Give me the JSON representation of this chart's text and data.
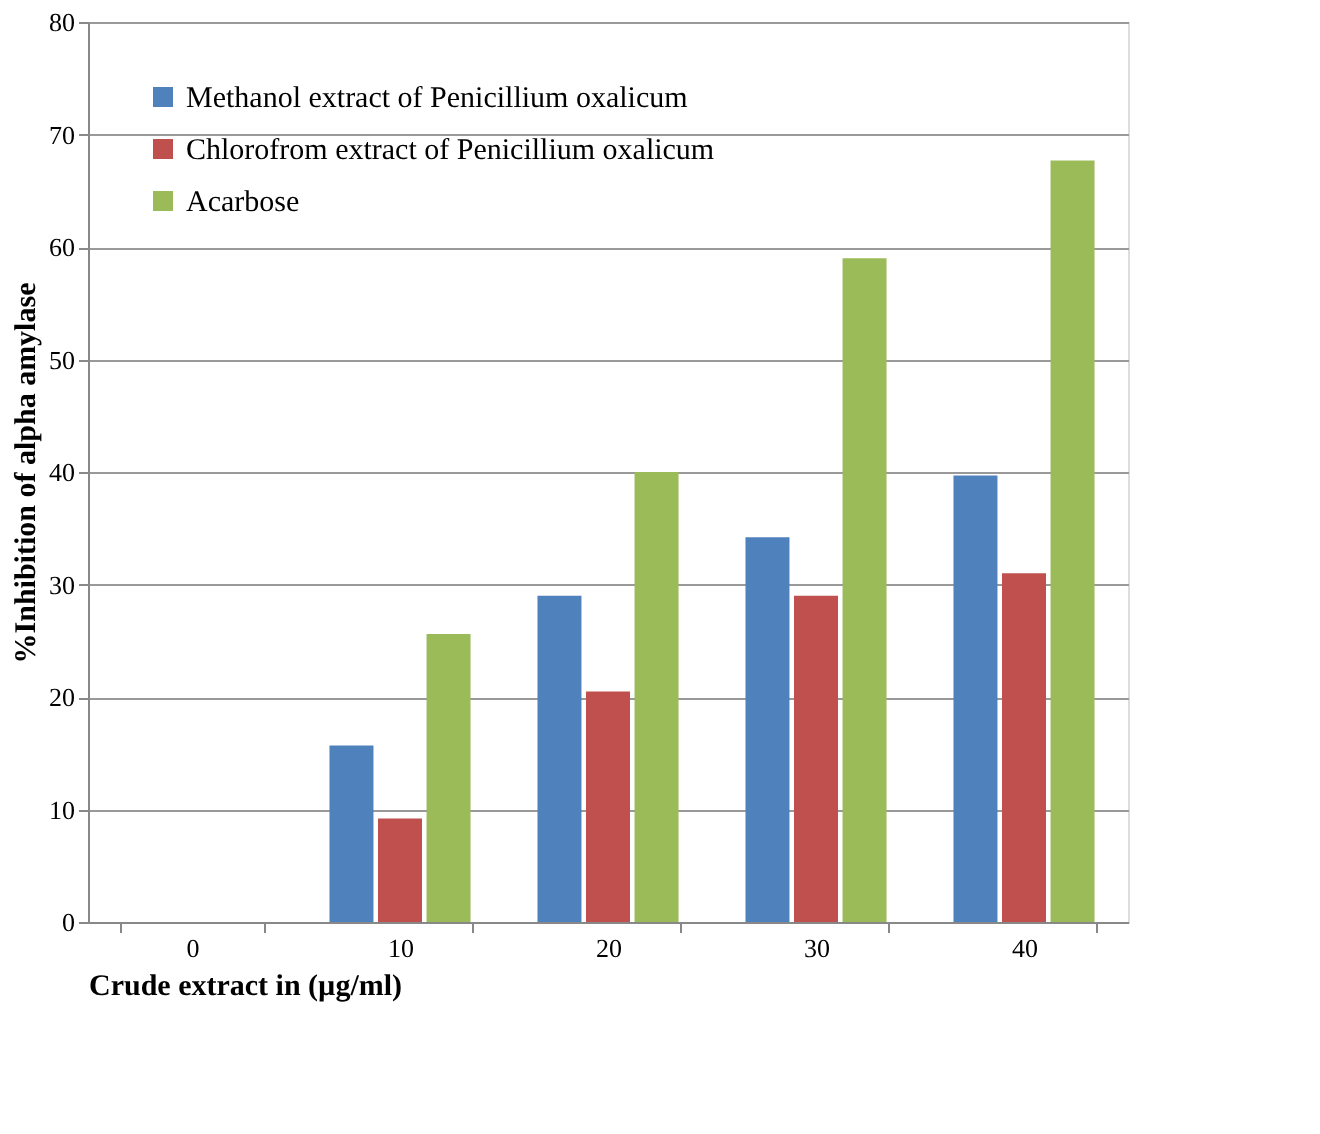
{
  "chart_data": {
    "type": "bar",
    "xlabel": "Crude extract in (µg/ml)",
    "ylabel": "%Inhibition of alpha amylase",
    "categories": [
      "0",
      "10",
      "20",
      "30",
      "40"
    ],
    "series": [
      {
        "name": "Methanol extract of Penicillium oxalicum",
        "color": "#4f81bd",
        "values": [
          0,
          15.7,
          29,
          34.2,
          39.7
        ]
      },
      {
        "name": "Chlorofrom extract of Penicillium oxalicum",
        "color": "#c0504d",
        "values": [
          0,
          9.2,
          20.5,
          29,
          31
        ]
      },
      {
        "name": "Acarbose",
        "color": "#9bbb59",
        "values": [
          0,
          25.6,
          40,
          59,
          67.7
        ]
      }
    ],
    "ylim": [
      0,
      80
    ],
    "yticks": [
      0,
      10,
      20,
      30,
      40,
      50,
      60,
      70,
      80
    ],
    "grid": "y",
    "legend": "top left"
  }
}
